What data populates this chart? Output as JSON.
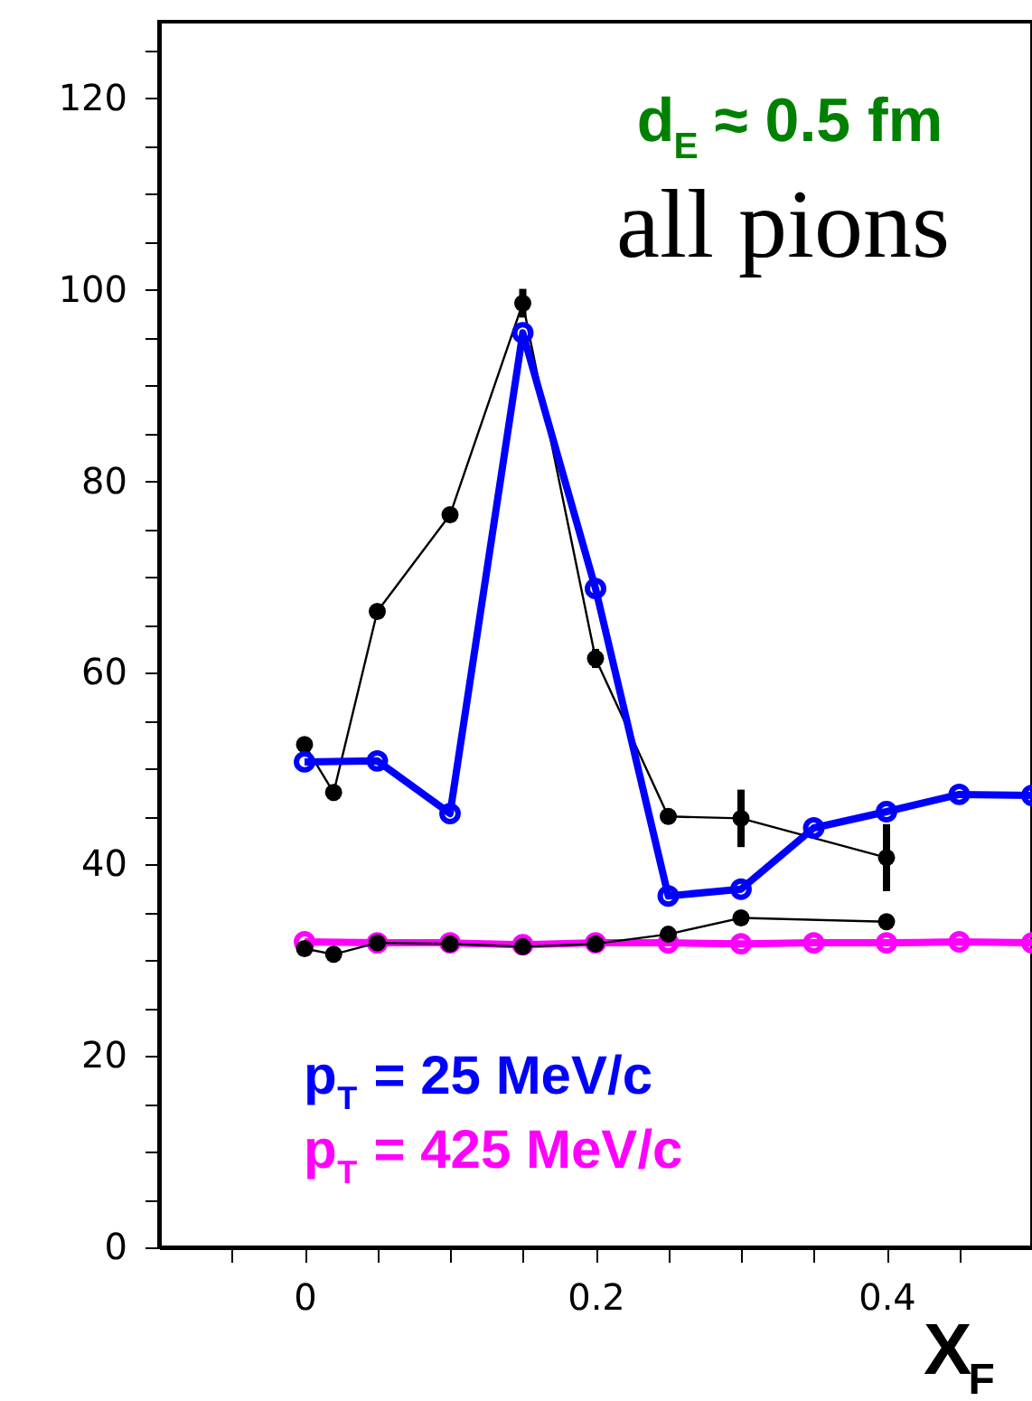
{
  "chart_data": {
    "type": "line",
    "xlabel": "X$_{F}$",
    "marker": "circle",
    "grid": false,
    "legend": false,
    "xlim": [
      -0.1,
      0.5
    ],
    "ylim": [
      0,
      128
    ],
    "xticks": [
      {
        "value": -0.05,
        "label": null
      },
      0,
      {
        "value": 0.05,
        "label": null
      },
      {
        "value": 0.1,
        "label": null
      },
      {
        "value": 0.15,
        "label": null
      },
      0.2,
      {
        "value": 0.25,
        "label": null
      },
      {
        "value": 0.3,
        "label": null
      },
      {
        "value": 0.35,
        "label": null
      },
      0.4,
      {
        "value": 0.45,
        "label": null
      }
    ],
    "yticks": [
      0,
      {
        "value": 5,
        "label": null
      },
      {
        "value": 10,
        "label": null
      },
      {
        "value": 15,
        "label": null
      },
      20,
      {
        "value": 25,
        "label": null
      },
      {
        "value": 30,
        "label": null
      },
      {
        "value": 35,
        "label": null
      },
      40,
      {
        "value": 45,
        "label": null
      },
      {
        "value": 50,
        "label": null
      },
      {
        "value": 55,
        "label": null
      },
      60,
      {
        "value": 65,
        "label": null
      },
      {
        "value": 70,
        "label": null
      },
      {
        "value": 75,
        "label": null
      },
      80,
      {
        "value": 85,
        "label": null
      },
      {
        "value": 90,
        "label": null
      },
      {
        "value": 95,
        "label": null
      },
      100,
      {
        "value": 105,
        "label": null
      },
      {
        "value": 110,
        "label": null
      },
      {
        "value": 115,
        "label": null
      },
      120,
      {
        "value": 125,
        "label": null
      }
    ],
    "annotations": [
      "d$_{E}$ ≈ 0.5 fm",
      "all pions"
    ],
    "series": [
      {
        "color": "#000000",
        "x": [
          0,
          0.02,
          0.05,
          0.1,
          0.15,
          0.2,
          0.25,
          0.3,
          0.4
        ],
        "values": [
          52.5,
          47.5,
          66.4,
          76.5,
          98.6,
          61.5,
          45.0,
          44.8,
          40.7
        ],
        "errors": [
          null,
          null,
          null,
          null,
          1.5,
          1.0,
          0.8,
          3.0,
          3.5
        ]
      },
      {
        "name": "p$_{T}$ = 25 MeV/c",
        "color": "#0000ff",
        "x": [
          0,
          0.05,
          0.1,
          0.15,
          0.2,
          0.25,
          0.3,
          0.35,
          0.4,
          0.45,
          0.5
        ],
        "values": [
          50.7,
          50.8,
          45.3,
          95.5,
          68.8,
          36.7,
          37.4,
          43.8,
          45.5,
          47.3,
          47.2
        ]
      },
      {
        "name": "p$_{T}$ = 425 MeV/c",
        "color": "#ff00ff",
        "x": [
          0,
          0.05,
          0.1,
          0.15,
          0.2,
          0.25,
          0.3,
          0.35,
          0.4,
          0.45,
          0.5
        ],
        "values": [
          31.9,
          31.8,
          31.8,
          31.6,
          31.8,
          31.8,
          31.7,
          31.8,
          31.8,
          31.9,
          31.8
        ]
      },
      {
        "color": "#000000",
        "x": [
          0,
          0.02,
          0.05,
          0.1,
          0.15,
          0.2,
          0.25,
          0.3,
          0.4
        ],
        "values": [
          31.2,
          30.6,
          31.8,
          31.7,
          31.4,
          31.7,
          32.7,
          34.4,
          34.0
        ]
      }
    ]
  }
}
